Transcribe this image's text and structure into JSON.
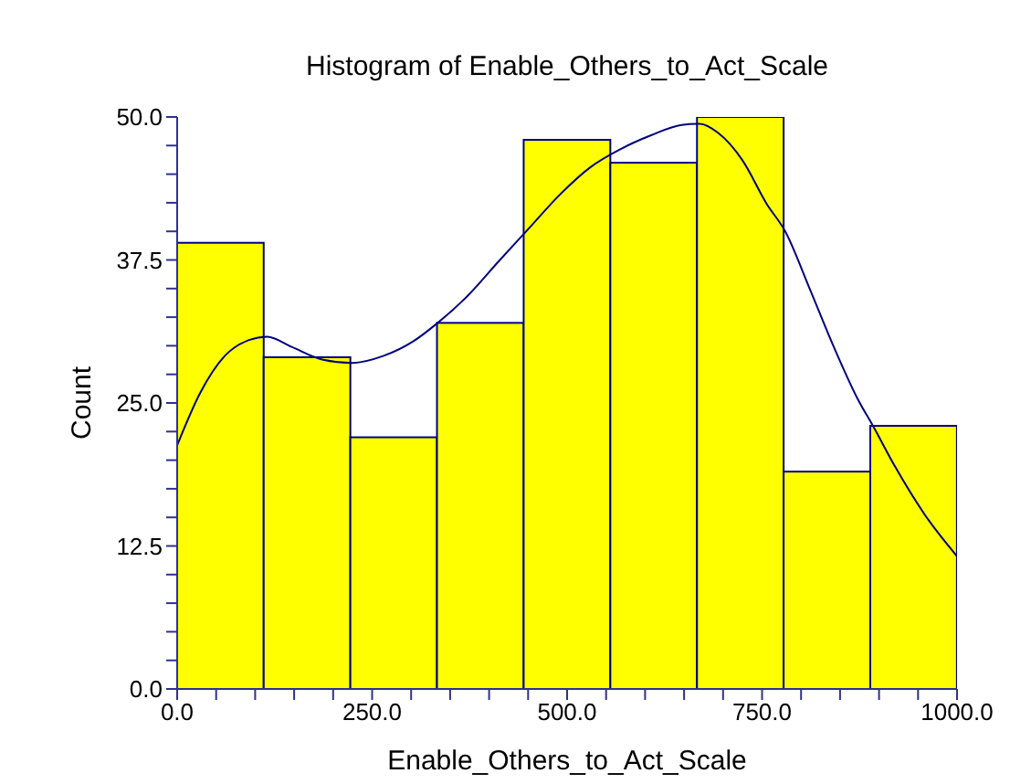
{
  "chart_data": {
    "type": "histogram",
    "title": "Histogram of Enable_Others_to_Act_Scale",
    "xlabel": "Enable_Others_to_Act_Scale",
    "ylabel": "Count",
    "bins": [
      0,
      111.1,
      222.2,
      333.3,
      444.4,
      555.6,
      666.7,
      777.8,
      888.9,
      1000
    ],
    "values": [
      39,
      29,
      22,
      32,
      48,
      46,
      50,
      19,
      23
    ],
    "color": "#ffff00",
    "series": [
      {
        "type": "line",
        "color": "#000080",
        "x": [
          0,
          29.7,
          60.9,
          92,
          115.6,
          146.9,
          186,
          225,
          264,
          303,
          334,
          373,
          412.5,
          451.6,
          490.6,
          529.7,
          568.8,
          607.8,
          646.9,
          670,
          693.8,
          725,
          756,
          779.7,
          811,
          842,
          873,
          893,
          920,
          959,
          1000
        ],
        "values": [
          21.3,
          25.9,
          29.1,
          30.5,
          30.8,
          29.9,
          28.8,
          28.5,
          29.1,
          30.4,
          32.0,
          34.4,
          37.4,
          40.3,
          43.2,
          45.6,
          47.2,
          48.4,
          49.3,
          49.4,
          48.6,
          46.2,
          42.4,
          40.0,
          35.0,
          29.9,
          25.3,
          22.9,
          19.5,
          15.2,
          11.6
        ]
      }
    ],
    "xlim": [
      0,
      1000
    ],
    "xticks": [
      {
        "value": 0,
        "label": "0.0"
      },
      {
        "value": 50,
        "label": null
      },
      {
        "value": 100,
        "label": null
      },
      {
        "value": 150,
        "label": null
      },
      {
        "value": 200,
        "label": null
      },
      {
        "value": 250,
        "label": "250.0"
      },
      {
        "value": 300,
        "label": null
      },
      {
        "value": 350,
        "label": null
      },
      {
        "value": 400,
        "label": null
      },
      {
        "value": 450,
        "label": null
      },
      {
        "value": 500,
        "label": "500.0"
      },
      {
        "value": 550,
        "label": null
      },
      {
        "value": 600,
        "label": null
      },
      {
        "value": 650,
        "label": null
      },
      {
        "value": 700,
        "label": null
      },
      {
        "value": 750,
        "label": "750.0"
      },
      {
        "value": 800,
        "label": null
      },
      {
        "value": 850,
        "label": null
      },
      {
        "value": 900,
        "label": null
      },
      {
        "value": 950,
        "label": null
      },
      {
        "value": 1000,
        "label": "1000.0"
      }
    ],
    "ylim": [
      0,
      50
    ],
    "yticks": [
      {
        "value": 0,
        "label": "0.0"
      },
      {
        "value": 2.5,
        "label": null
      },
      {
        "value": 5,
        "label": null
      },
      {
        "value": 7.5,
        "label": null
      },
      {
        "value": 10,
        "label": null
      },
      {
        "value": 12.5,
        "label": "12.5"
      },
      {
        "value": 15,
        "label": null
      },
      {
        "value": 17.5,
        "label": null
      },
      {
        "value": 20,
        "label": null
      },
      {
        "value": 22.5,
        "label": null
      },
      {
        "value": 25,
        "label": "25.0"
      },
      {
        "value": 27.5,
        "label": null
      },
      {
        "value": 30,
        "label": null
      },
      {
        "value": 32.5,
        "label": null
      },
      {
        "value": 35,
        "label": null
      },
      {
        "value": 37.5,
        "label": "37.5"
      },
      {
        "value": 40,
        "label": null
      },
      {
        "value": 42.5,
        "label": null
      },
      {
        "value": 45,
        "label": null
      },
      {
        "value": 47.5,
        "label": null
      },
      {
        "value": 50,
        "label": "50.0"
      }
    ]
  }
}
